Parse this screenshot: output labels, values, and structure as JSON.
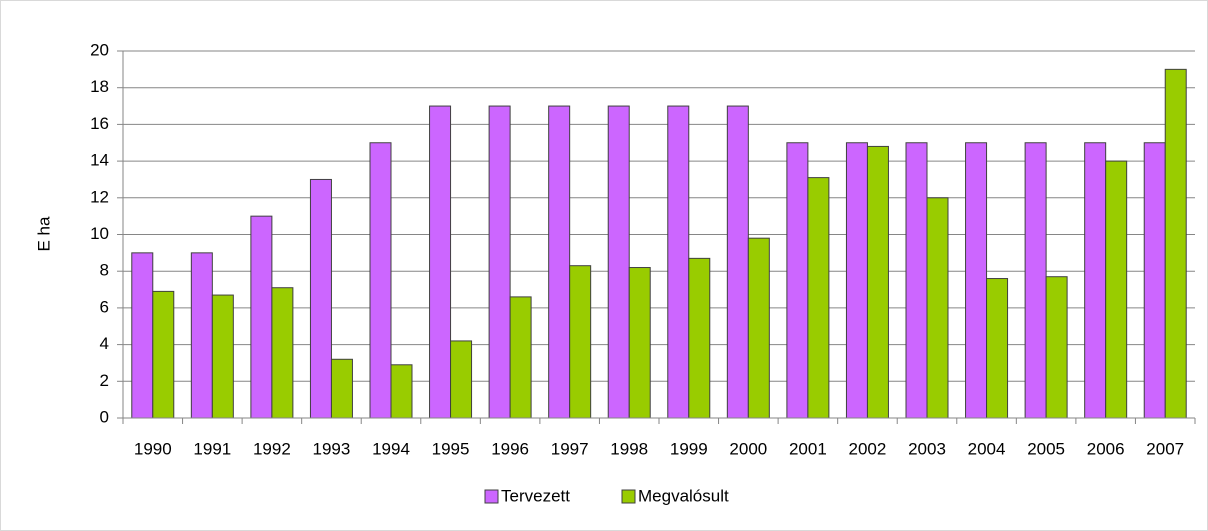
{
  "chart_data": {
    "type": "bar",
    "y_label": "E ha",
    "categories": [
      "1990",
      "1991",
      "1992",
      "1993",
      "1994",
      "1995",
      "1996",
      "1997",
      "1998",
      "1999",
      "2000",
      "2001",
      "2002",
      "2003",
      "2004",
      "2005",
      "2006",
      "2007"
    ],
    "series": [
      {
        "name": "Tervezett",
        "color": "#cc66ff",
        "values": [
          9,
          9,
          11,
          13,
          15,
          17,
          17,
          17,
          17,
          17,
          17,
          15,
          15,
          15,
          15,
          15,
          15,
          15
        ]
      },
      {
        "name": "Megvalósult",
        "color": "#99cc00",
        "values": [
          6.9,
          6.7,
          7.1,
          3.2,
          2.9,
          4.2,
          6.6,
          8.3,
          8.2,
          8.7,
          9.8,
          13.1,
          14.8,
          12.0,
          7.6,
          7.7,
          14.0,
          19.0
        ]
      }
    ],
    "ylim": [
      0,
      20
    ],
    "yticks": [
      0,
      2,
      4,
      6,
      8,
      10,
      12,
      14,
      16,
      18,
      20
    ],
    "grid": true,
    "legend": "bottom"
  }
}
